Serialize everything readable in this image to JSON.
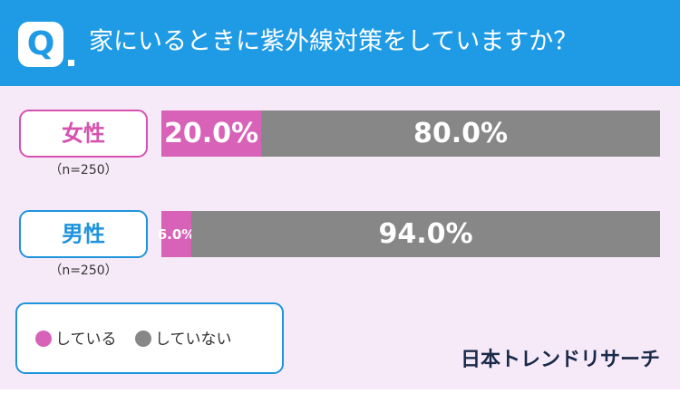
{
  "header": {
    "q": "Q",
    "question": "家にいるときに紫外線対策をしていますか？"
  },
  "chart_data": {
    "type": "stacked-bar-horizontal",
    "categories": [
      "女性",
      "男性"
    ],
    "category_colors": [
      "#d652b0",
      "#1f93dc"
    ],
    "sample_sizes": [
      "（n=250）",
      "（n=250）"
    ],
    "xlim": [
      0,
      100
    ],
    "series": [
      {
        "name": "している",
        "color": "#d862b8",
        "values": [
          20.0,
          6.0
        ],
        "value_labels": [
          "20.0%",
          "6.0%"
        ]
      },
      {
        "name": "していない",
        "color": "#878787",
        "values": [
          80.0,
          94.0
        ],
        "value_labels": [
          "80.0%",
          "94.0%"
        ]
      }
    ]
  },
  "brand": "日本トレンドリサーチ"
}
